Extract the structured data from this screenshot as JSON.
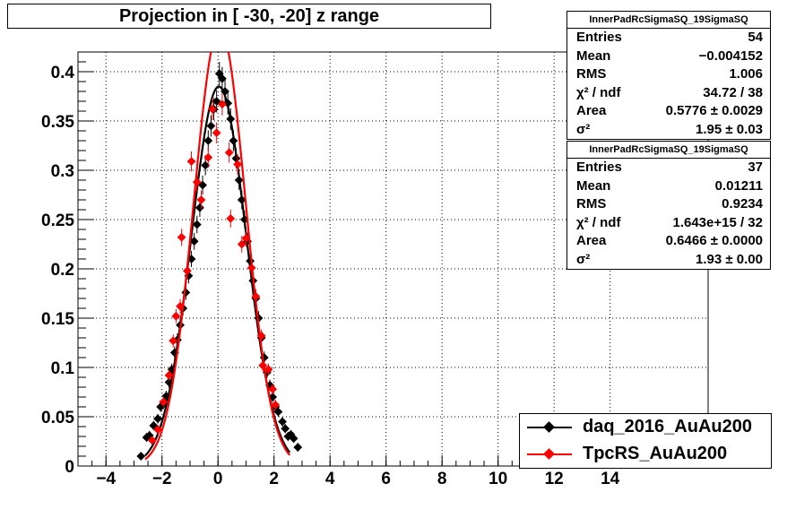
{
  "chart_data": {
    "type": "scatter",
    "title": "Projection in [ -30, -20] z range",
    "xlim": [
      -5,
      17.5
    ],
    "ylim": [
      0,
      0.42
    ],
    "x_ticks": [
      -4,
      -2,
      0,
      2,
      4,
      6,
      8,
      10,
      12,
      14
    ],
    "x_tick_labels": [
      "−4",
      "−2",
      "0",
      "2",
      "4",
      "6",
      "8",
      "10",
      "12",
      "14"
    ],
    "y_ticks": [
      0,
      0.05,
      0.1,
      0.15,
      0.2,
      0.25,
      0.3,
      0.35,
      0.4
    ],
    "y_tick_labels": [
      "0",
      "0.05",
      "0.1",
      "0.15",
      "0.2",
      "0.25",
      "0.3",
      "0.35",
      "0.4"
    ],
    "grid": true,
    "legend_position": "bottom-right",
    "series": [
      {
        "name": "daq_2016_AuAu200",
        "color": "#000000",
        "marker": "diamond",
        "points": [
          [
            -2.75,
            0.01
          ],
          [
            -2.55,
            0.029
          ],
          [
            -2.45,
            0.031
          ],
          [
            -2.3,
            0.041
          ],
          [
            -2.15,
            0.048
          ],
          [
            -2.05,
            0.06
          ],
          [
            -1.95,
            0.063
          ],
          [
            -1.85,
            0.071
          ],
          [
            -1.75,
            0.085
          ],
          [
            -1.65,
            0.098
          ],
          [
            -1.55,
            0.115
          ],
          [
            -1.45,
            0.128
          ],
          [
            -1.35,
            0.143
          ],
          [
            -1.25,
            0.16
          ],
          [
            -1.15,
            0.176
          ],
          [
            -1.05,
            0.193
          ],
          [
            -0.95,
            0.21
          ],
          [
            -0.85,
            0.228
          ],
          [
            -0.75,
            0.245
          ],
          [
            -0.65,
            0.262
          ],
          [
            -0.55,
            0.285
          ],
          [
            -0.45,
            0.305
          ],
          [
            -0.35,
            0.33
          ],
          [
            -0.25,
            0.345
          ],
          [
            -0.15,
            0.362
          ],
          [
            -0.05,
            0.37
          ],
          [
            0.05,
            0.398
          ],
          [
            0.15,
            0.393
          ],
          [
            0.25,
            0.38
          ],
          [
            0.35,
            0.368
          ],
          [
            0.45,
            0.352
          ],
          [
            0.55,
            0.33
          ],
          [
            0.65,
            0.312
          ],
          [
            0.75,
            0.29
          ],
          [
            0.85,
            0.27
          ],
          [
            0.95,
            0.25
          ],
          [
            1.05,
            0.228
          ],
          [
            1.15,
            0.208
          ],
          [
            1.25,
            0.188
          ],
          [
            1.35,
            0.17
          ],
          [
            1.45,
            0.15
          ],
          [
            1.55,
            0.13
          ],
          [
            1.65,
            0.11
          ],
          [
            1.75,
            0.095
          ],
          [
            1.85,
            0.082
          ],
          [
            1.95,
            0.07
          ],
          [
            2.05,
            0.06
          ],
          [
            2.15,
            0.055
          ],
          [
            2.3,
            0.045
          ],
          [
            2.4,
            0.038
          ],
          [
            2.5,
            0.03
          ],
          [
            2.6,
            0.032
          ],
          [
            2.7,
            0.028
          ],
          [
            2.85,
            0.019
          ]
        ],
        "fit_curve": {
          "color": "#000000",
          "mean": 0.03,
          "sigma": 0.98,
          "peak": 0.385
        }
      },
      {
        "name": "TpcRS_AuAu200",
        "color": "#ff0000",
        "marker": "diamond",
        "points": [
          [
            -2.35,
            0.026
          ],
          [
            -2.15,
            0.037
          ],
          [
            -1.95,
            0.065
          ],
          [
            -1.75,
            0.092
          ],
          [
            -1.6,
            0.127
          ],
          [
            -1.5,
            0.152
          ],
          [
            -1.35,
            0.162
          ],
          [
            -1.3,
            0.232
          ],
          [
            -1.1,
            0.198
          ],
          [
            -0.95,
            0.309
          ],
          [
            -0.75,
            0.288
          ],
          [
            -0.6,
            0.27
          ],
          [
            -0.35,
            0.313
          ],
          [
            -0.2,
            0.362
          ],
          [
            -0.05,
            0.338
          ],
          [
            0.15,
            0.367
          ],
          [
            0.4,
            0.318
          ],
          [
            0.45,
            0.251
          ],
          [
            0.7,
            0.306
          ],
          [
            0.85,
            0.225
          ],
          [
            1.0,
            0.231
          ],
          [
            1.2,
            0.201
          ],
          [
            1.35,
            0.172
          ],
          [
            1.55,
            0.132
          ],
          [
            1.6,
            0.102
          ],
          [
            1.8,
            0.098
          ],
          [
            1.95,
            0.078
          ],
          [
            2.05,
            0.062
          ]
        ],
        "fit_curve": {
          "color": "#ff0000",
          "mean": 0.06,
          "sigma": 0.92,
          "peak": 0.445
        }
      }
    ]
  },
  "stats": [
    {
      "header": "InnerPadRcSigmaSQ_19SigmaSQ",
      "rows": [
        {
          "label": "Entries",
          "value": "54"
        },
        {
          "label": "Mean",
          "value": "−0.004152"
        },
        {
          "label": "RMS",
          "value": "1.006"
        },
        {
          "label": "χ² / ndf",
          "value": "34.72 / 38"
        },
        {
          "label": "Area",
          "value": "0.5776 ± 0.0029"
        },
        {
          "label": "σ²",
          "value": "1.95 ± 0.03"
        }
      ]
    },
    {
      "header": "InnerPadRcSigmaSQ_19SigmaSQ",
      "rows": [
        {
          "label": "Entries",
          "value": "37"
        },
        {
          "label": "Mean",
          "value": "0.01211"
        },
        {
          "label": "RMS",
          "value": "0.9234"
        },
        {
          "label": "χ² / ndf",
          "value": "1.643e+15 / 32"
        },
        {
          "label": "Area",
          "value": "0.6466 ± 0.0000"
        },
        {
          "label": "σ²",
          "value": "1.93 ± 0.00"
        }
      ]
    }
  ]
}
